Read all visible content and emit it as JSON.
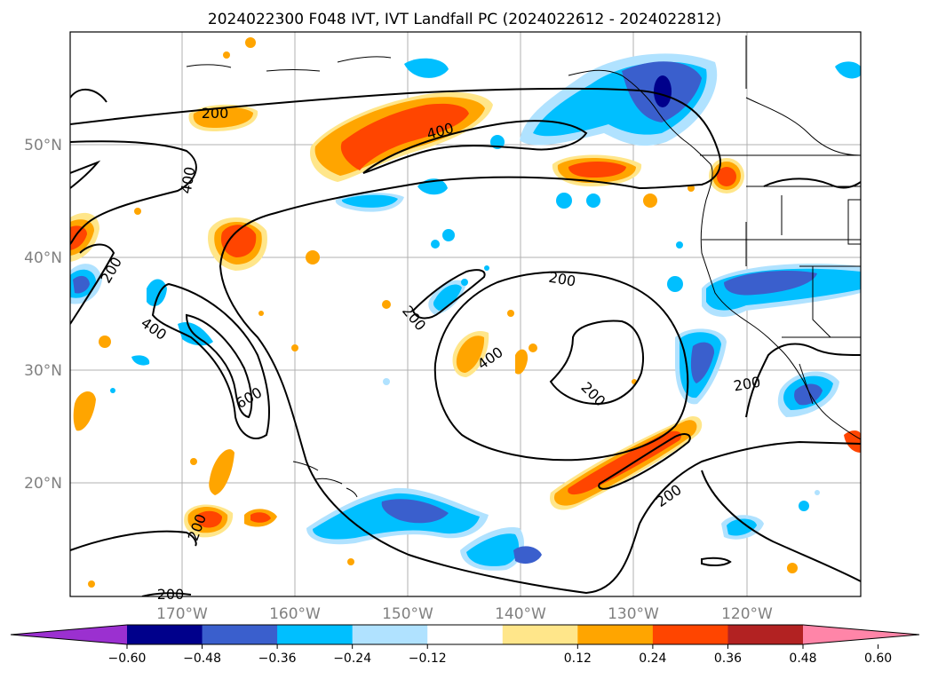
{
  "title": "2024022300 F048 IVT, IVT Landfall PC (2024022612 - 2024022812)",
  "map": {
    "lat_labels": [
      "50°N",
      "40°N",
      "30°N",
      "20°N"
    ],
    "lon_labels": [
      "170°W",
      "160°W",
      "150°W",
      "140°W",
      "130°W",
      "120°W"
    ],
    "contour_labels": [
      "200",
      "400",
      "400",
      "200",
      "400",
      "600",
      "200",
      "200",
      "400",
      "200",
      "200",
      "200",
      "200",
      "200"
    ]
  },
  "colorbar": {
    "tick_labels": [
      "-0.60",
      "-0.48",
      "-0.36",
      "-0.24",
      "-0.12",
      "0.12",
      "0.24",
      "0.36",
      "0.48",
      "0.60"
    ],
    "colors": [
      "#9b30d0",
      "#00008b",
      "#3a5fcd",
      "#00bfff",
      "#b0e2ff",
      "#ffffff",
      "#ffe68a",
      "#ffa500",
      "#ff4500",
      "#b22222",
      "#ff85a8"
    ]
  }
}
